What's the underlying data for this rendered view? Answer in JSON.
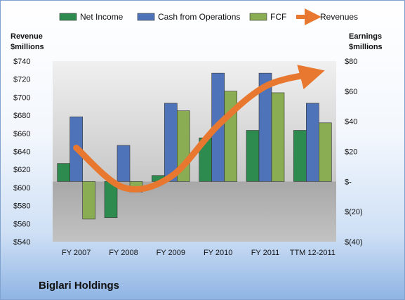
{
  "company_name": "Biglari Holdings",
  "chart_data": {
    "type": "bar",
    "categories": [
      "FY 2007",
      "FY 2008",
      "FY 2009",
      "FY 2010",
      "FY 2011",
      "TTM 12-2011"
    ],
    "left_axis": {
      "title_line1": "Revenue",
      "title_line2": "$millions",
      "range": [
        540,
        740
      ],
      "ticks": [
        "$740",
        "$720",
        "$700",
        "$680",
        "$660",
        "$640",
        "$620",
        "$600",
        "$580",
        "$560",
        "$540"
      ]
    },
    "right_axis": {
      "title_line1": "Earnings",
      "title_line2": "$millions",
      "range": [
        -40,
        80
      ],
      "ticks": [
        "$80",
        "$60",
        "$40",
        "$20",
        "$-",
        "$(20)",
        "$(40)"
      ]
    },
    "series": [
      {
        "name": "Net Income",
        "axis": "right",
        "color": "#2e8b4f",
        "values": [
          12,
          -24,
          4,
          29,
          34,
          34
        ]
      },
      {
        "name": "Cash from Operations",
        "axis": "right",
        "color": "#4f73b8",
        "values": [
          43,
          24,
          52,
          72,
          72,
          52
        ]
      },
      {
        "name": "FCF",
        "axis": "right",
        "color": "#8aac52",
        "values": [
          -25,
          -7,
          47,
          60,
          59,
          39
        ]
      },
      {
        "name": "Revenues",
        "axis": "left",
        "type": "line",
        "color": "#e8782f",
        "values": [
          644,
          600,
          612,
          669,
          712,
          726
        ]
      }
    ],
    "legend_position": "top",
    "grid": false
  }
}
